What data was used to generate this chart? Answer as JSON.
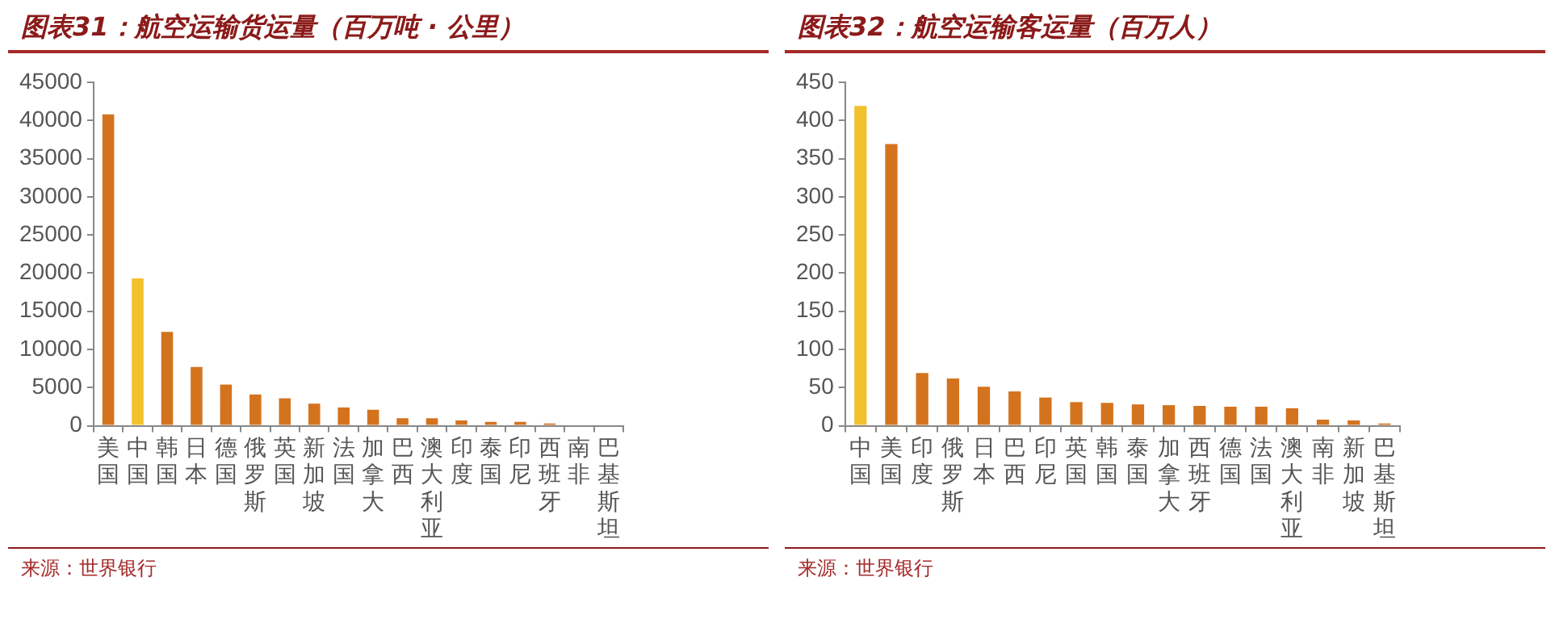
{
  "chart_data": [
    {
      "type": "bar",
      "title": "图表31：航空运输货运量（百万吨 · 公里）",
      "categories": [
        "美国",
        "中国",
        "韩国",
        "日本",
        "德国",
        "俄罗斯",
        "英国",
        "新加坡",
        "法国",
        "加拿大",
        "巴西",
        "澳大利亚",
        "印度",
        "泰国",
        "印尼",
        "西班牙",
        "南非",
        "巴基斯坦"
      ],
      "values": [
        40800,
        19300,
        12300,
        7700,
        5400,
        4100,
        3600,
        2900,
        2400,
        2100,
        1000,
        1000,
        700,
        500,
        500,
        300,
        0,
        0
      ],
      "colors": [
        "#d4731e",
        "#f2c12e",
        "#d4731e",
        "#d4731e",
        "#d4731e",
        "#d4731e",
        "#d4731e",
        "#d4731e",
        "#d4731e",
        "#d4731e",
        "#d4731e",
        "#d4731e",
        "#d4731e",
        "#d4731e",
        "#d4731e",
        "#d4731e",
        "#d4731e",
        "#d4731e"
      ],
      "ylim": [
        0,
        45000
      ],
      "yticks": [
        0,
        5000,
        10000,
        15000,
        20000,
        25000,
        30000,
        35000,
        40000,
        45000
      ],
      "grid": false,
      "legend": false,
      "annotations": [
        "来源：世界银行"
      ]
    },
    {
      "type": "bar",
      "title": "图表32：航空运输客运量（百万人）",
      "categories": [
        "中国",
        "美国",
        "印度",
        "俄罗斯",
        "日本",
        "巴西",
        "印尼",
        "英国",
        "韩国",
        "泰国",
        "加拿大",
        "西班牙",
        "德国",
        "法国",
        "澳大利亚",
        "南非",
        "新加坡",
        "巴基斯坦"
      ],
      "values": [
        419,
        369,
        69,
        62,
        51,
        45,
        37,
        31,
        30,
        28,
        27,
        26,
        25,
        25,
        23,
        8,
        7,
        3
      ],
      "colors": [
        "#f2c12e",
        "#d4731e",
        "#d4731e",
        "#d4731e",
        "#d4731e",
        "#d4731e",
        "#d4731e",
        "#d4731e",
        "#d4731e",
        "#d4731e",
        "#d4731e",
        "#d4731e",
        "#d4731e",
        "#d4731e",
        "#d4731e",
        "#d4731e",
        "#d4731e",
        "#d4731e"
      ],
      "ylim": [
        0,
        450
      ],
      "yticks": [
        0,
        50,
        100,
        150,
        200,
        250,
        300,
        350,
        400,
        450
      ],
      "grid": false,
      "legend": false,
      "annotations": [
        "来源：世界银行"
      ]
    }
  ]
}
